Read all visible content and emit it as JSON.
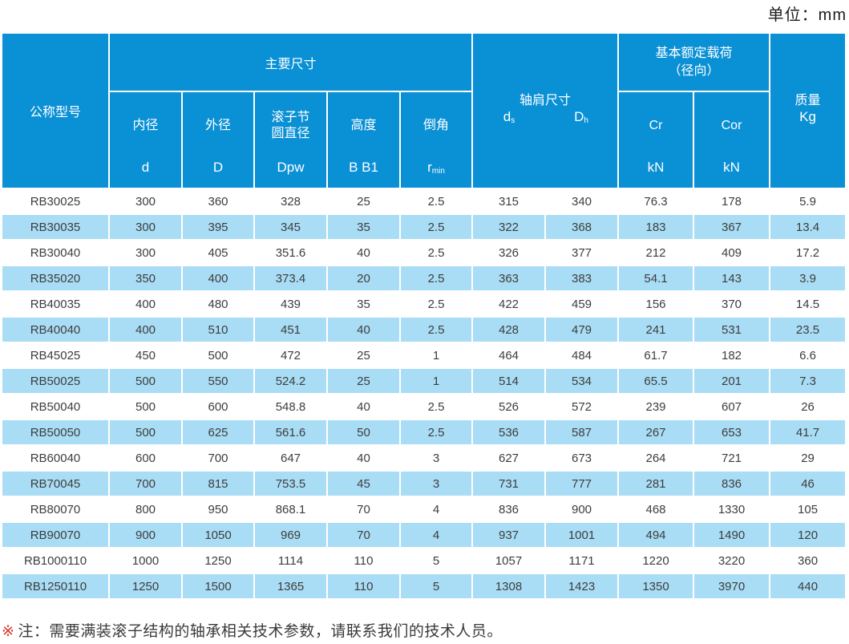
{
  "unit_label": "单位：mm",
  "colors": {
    "header_bg": "#0a90d5",
    "row_alt_bg": "#a9ddf5",
    "row_bg": "#ffffff",
    "header_text": "#ffffff",
    "body_text": "#3d3d3d",
    "note_mark": "#d43327"
  },
  "headers": {
    "model": "公称型号",
    "main_dimensions": "主要尺寸",
    "sub_columns": [
      {
        "name": "内径",
        "sym": "d"
      },
      {
        "name": "外径",
        "sym": "D"
      },
      {
        "name": "滚子节圆直径",
        "sym": "Dpw"
      },
      {
        "name": "高度",
        "sym": "B B1"
      },
      {
        "name": "倒角",
        "sym_main": "r",
        "sym_sub": "min"
      }
    ],
    "shoulder": {
      "label": "轴肩尺寸",
      "sym1_main": "d",
      "sym1_sub": "s",
      "sym2_main": "D",
      "sym2_sub": "h"
    },
    "load": {
      "line1": "基本额定载荷",
      "line2": "（径向）",
      "columns": [
        {
          "sym": "Cr",
          "unit": "kN"
        },
        {
          "sym": "Cor",
          "unit": "kN"
        }
      ]
    },
    "mass": {
      "label": "质量",
      "unit": "Kg"
    }
  },
  "table": {
    "rows": [
      [
        "RB30025",
        "300",
        "360",
        "328",
        "25",
        "2.5",
        "315",
        "340",
        "76.3",
        "178",
        "5.9"
      ],
      [
        "RB30035",
        "300",
        "395",
        "345",
        "35",
        "2.5",
        "322",
        "368",
        "183",
        "367",
        "13.4"
      ],
      [
        "RB30040",
        "300",
        "405",
        "351.6",
        "40",
        "2.5",
        "326",
        "377",
        "212",
        "409",
        "17.2"
      ],
      [
        "RB35020",
        "350",
        "400",
        "373.4",
        "20",
        "2.5",
        "363",
        "383",
        "54.1",
        "143",
        "3.9"
      ],
      [
        "RB40035",
        "400",
        "480",
        "439",
        "35",
        "2.5",
        "422",
        "459",
        "156",
        "370",
        "14.5"
      ],
      [
        "RB40040",
        "400",
        "510",
        "451",
        "40",
        "2.5",
        "428",
        "479",
        "241",
        "531",
        "23.5"
      ],
      [
        "RB45025",
        "450",
        "500",
        "472",
        "25",
        "1",
        "464",
        "484",
        "61.7",
        "182",
        "6.6"
      ],
      [
        "RB50025",
        "500",
        "550",
        "524.2",
        "25",
        "1",
        "514",
        "534",
        "65.5",
        "201",
        "7.3"
      ],
      [
        "RB50040",
        "500",
        "600",
        "548.8",
        "40",
        "2.5",
        "526",
        "572",
        "239",
        "607",
        "26"
      ],
      [
        "RB50050",
        "500",
        "625",
        "561.6",
        "50",
        "2.5",
        "536",
        "587",
        "267",
        "653",
        "41.7"
      ],
      [
        "RB60040",
        "600",
        "700",
        "647",
        "40",
        "3",
        "627",
        "673",
        "264",
        "721",
        "29"
      ],
      [
        "RB70045",
        "700",
        "815",
        "753.5",
        "45",
        "3",
        "731",
        "777",
        "281",
        "836",
        "46"
      ],
      [
        "RB80070",
        "800",
        "950",
        "868.1",
        "70",
        "4",
        "836",
        "900",
        "468",
        "1330",
        "105"
      ],
      [
        "RB90070",
        "900",
        "1050",
        "969",
        "70",
        "4",
        "937",
        "1001",
        "494",
        "1490",
        "120"
      ],
      [
        "RB1000110",
        "1000",
        "1250",
        "1114",
        "110",
        "5",
        "1057",
        "1171",
        "1220",
        "3220",
        "360"
      ],
      [
        "RB1250110",
        "1250",
        "1500",
        "1365",
        "110",
        "5",
        "1308",
        "1423",
        "1350",
        "3970",
        "440"
      ]
    ]
  },
  "note": {
    "mark": "※",
    "text": "注：需要满装滚子结构的轴承相关技术参数，请联系我们的技术人员。"
  }
}
